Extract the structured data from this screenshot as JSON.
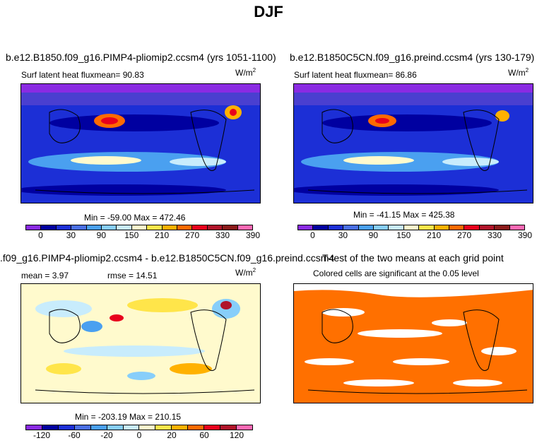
{
  "page_title": "DJF",
  "colors": {
    "scale": [
      "#8a2be2",
      "#0000a0",
      "#1c2fd6",
      "#4a6fe3",
      "#4aa0f0",
      "#87cefa",
      "#c8ecfc",
      "#fffacd",
      "#ffe54a",
      "#ffb100",
      "#ff6a00",
      "#e8001c",
      "#b0132a",
      "#8b1a1a",
      "#ff69b4"
    ],
    "diff_scale": [
      "#8a2be2",
      "#0000a0",
      "#1c2fd6",
      "#4a6fe3",
      "#4aa0f0",
      "#87cefa",
      "#c8ecfc",
      "#fffacd",
      "#ffe54a",
      "#ffb100",
      "#ff6a00",
      "#e8001c",
      "#b0132a",
      "#ff69b4"
    ],
    "significance": "#ff7000"
  },
  "panels": {
    "p1": {
      "title": "b.e12.B1850.f09_g16.PIMP4-pliomip2.ccsm4 (yrs 1051-1100)",
      "subtitle": "Surf latent heat fluxmean=   90.83",
      "units": "W/m",
      "units_sup": "2",
      "minmax": "Min = -59.00 Max = 472.46"
    },
    "p2": {
      "title": "b.e12.B1850C5CN.f09_g16.preind.ccsm4 (yrs 130-179)",
      "subtitle": "Surf latent heat fluxmean=   86.86",
      "units": "W/m",
      "units_sup": "2",
      "minmax": "Min = -41.15 Max = 425.38"
    },
    "p3": {
      "title": ".f09_g16.PIMP4-pliomip2.ccsm4 - b.e12.B1850C5CN.f09_g16.preind.ccsm4",
      "mean": "mean =    3.97",
      "rmse": "rmse =   14.51",
      "units": "W/m",
      "units_sup": "2",
      "minmax": "Min = -203.19 Max = 210.15"
    },
    "p4": {
      "title": "T-test of the two means at each grid point",
      "subtitle": "Colored cells are significant at the 0.05 level"
    }
  },
  "chart_data": [
    {
      "type": "heatmap",
      "title": "b.e12.B1850.f09_g16.PIMP4-pliomip2.ccsm4 (yrs 1051-1100)",
      "variable": "Surf latent heat flux",
      "mean": 90.83,
      "min": -59.0,
      "max": 472.46,
      "units": "W/m2",
      "colorbar_ticks": [
        "0",
        "30",
        "90",
        "150",
        "210",
        "270",
        "330",
        "390"
      ]
    },
    {
      "type": "heatmap",
      "title": "b.e12.B1850C5CN.f09_g16.preind.ccsm4 (yrs 130-179)",
      "variable": "Surf latent heat flux",
      "mean": 86.86,
      "min": -41.15,
      "max": 425.38,
      "units": "W/m2",
      "colorbar_ticks": [
        "0",
        "30",
        "90",
        "150",
        "210",
        "270",
        "330",
        "390"
      ]
    },
    {
      "type": "heatmap",
      "title": ".f09_g16.PIMP4-pliomip2.ccsm4 - b.e12.B1850C5CN.f09_g16.preind.ccsm4",
      "mean": 3.97,
      "rmse": 14.51,
      "min": -203.19,
      "max": 210.15,
      "units": "W/m2",
      "colorbar_ticks": [
        "-120",
        "-60",
        "-20",
        "0",
        "20",
        "60",
        "120"
      ]
    },
    {
      "type": "heatmap",
      "title": "T-test of the two means at each grid point",
      "note": "Colored cells are significant at the 0.05 level"
    }
  ]
}
